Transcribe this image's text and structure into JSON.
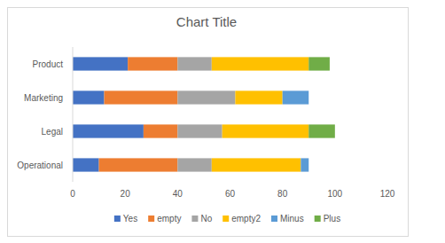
{
  "chart_data": {
    "type": "bar",
    "orientation": "horizontal",
    "stacked": true,
    "title": "Chart Title",
    "categories": [
      "Operational",
      "Legal",
      "Marketing",
      "Product"
    ],
    "series": [
      {
        "name": "Yes",
        "color": "#4472c4",
        "values": [
          10,
          27,
          12,
          21
        ]
      },
      {
        "name": "empty",
        "color": "#ed7d31",
        "values": [
          30,
          13,
          28,
          19
        ]
      },
      {
        "name": "No",
        "color": "#a5a5a5",
        "values": [
          13,
          17,
          22,
          13
        ]
      },
      {
        "name": "empty2",
        "color": "#ffc000",
        "values": [
          34,
          33,
          18,
          37
        ]
      },
      {
        "name": "Minus",
        "color": "#5b9bd5",
        "values": [
          3,
          0,
          10,
          0
        ]
      },
      {
        "name": "Plus",
        "color": "#70ad47",
        "values": [
          0,
          10,
          0,
          8
        ]
      }
    ],
    "xlim": [
      0,
      120
    ],
    "xticks": [
      0,
      20,
      40,
      60,
      80,
      100,
      120
    ],
    "grid": false,
    "legend": "bottom"
  }
}
